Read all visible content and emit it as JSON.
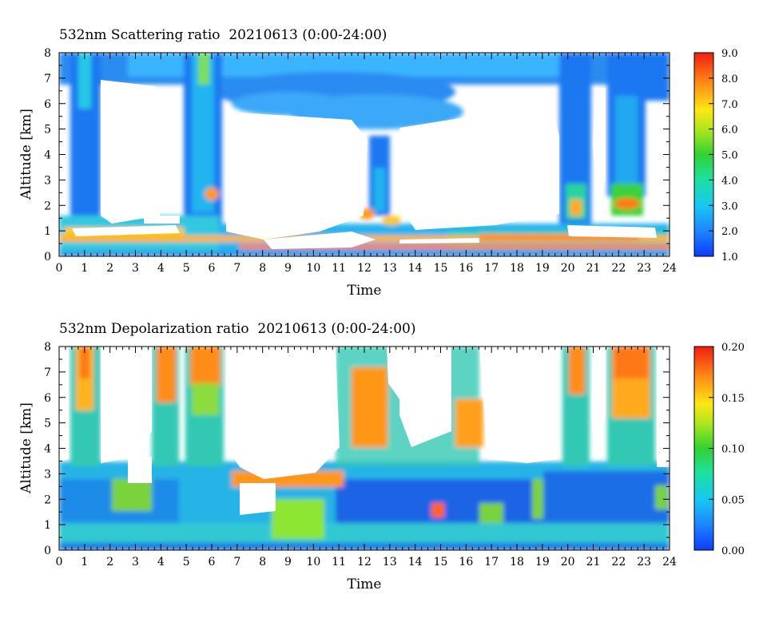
{
  "chart_data": [
    {
      "type": "heatmap",
      "title": "532nm Scattering ratio  20210613 (0:00-24:00)",
      "xlabel": "Time",
      "ylabel": "Altitude [km]",
      "xlim": [
        0,
        24
      ],
      "ylim": [
        0,
        8
      ],
      "xticks": [
        "0",
        "1",
        "2",
        "3",
        "4",
        "5",
        "6",
        "7",
        "8",
        "9",
        "10",
        "11",
        "12",
        "13",
        "14",
        "15",
        "16",
        "17",
        "18",
        "19",
        "20",
        "21",
        "22",
        "23",
        "24"
      ],
      "yticks": [
        "0",
        "1",
        "2",
        "3",
        "4",
        "5",
        "6",
        "7",
        "8"
      ],
      "colorbar": {
        "range": [
          1.0,
          9.0
        ],
        "ticks": [
          "1.0",
          "2.0",
          "3.0",
          "4.0",
          "5.0",
          "6.0",
          "7.0",
          "8.0",
          "9.0"
        ]
      }
    },
    {
      "type": "heatmap",
      "title": "532nm Depolarization ratio  20210613 (0:00-24:00)",
      "xlabel": "Time",
      "ylabel": "Altitude [km]",
      "xlim": [
        0,
        24
      ],
      "ylim": [
        0,
        8
      ],
      "xticks": [
        "0",
        "1",
        "2",
        "3",
        "4",
        "5",
        "6",
        "7",
        "8",
        "9",
        "10",
        "11",
        "12",
        "13",
        "14",
        "15",
        "16",
        "17",
        "18",
        "19",
        "20",
        "21",
        "22",
        "23",
        "24"
      ],
      "yticks": [
        "0",
        "1",
        "2",
        "3",
        "4",
        "5",
        "6",
        "7",
        "8"
      ],
      "colorbar": {
        "range": [
          0.0,
          0.2
        ],
        "ticks": [
          "0.00",
          "0.05",
          "0.10",
          "0.15",
          "0.20"
        ]
      }
    }
  ]
}
